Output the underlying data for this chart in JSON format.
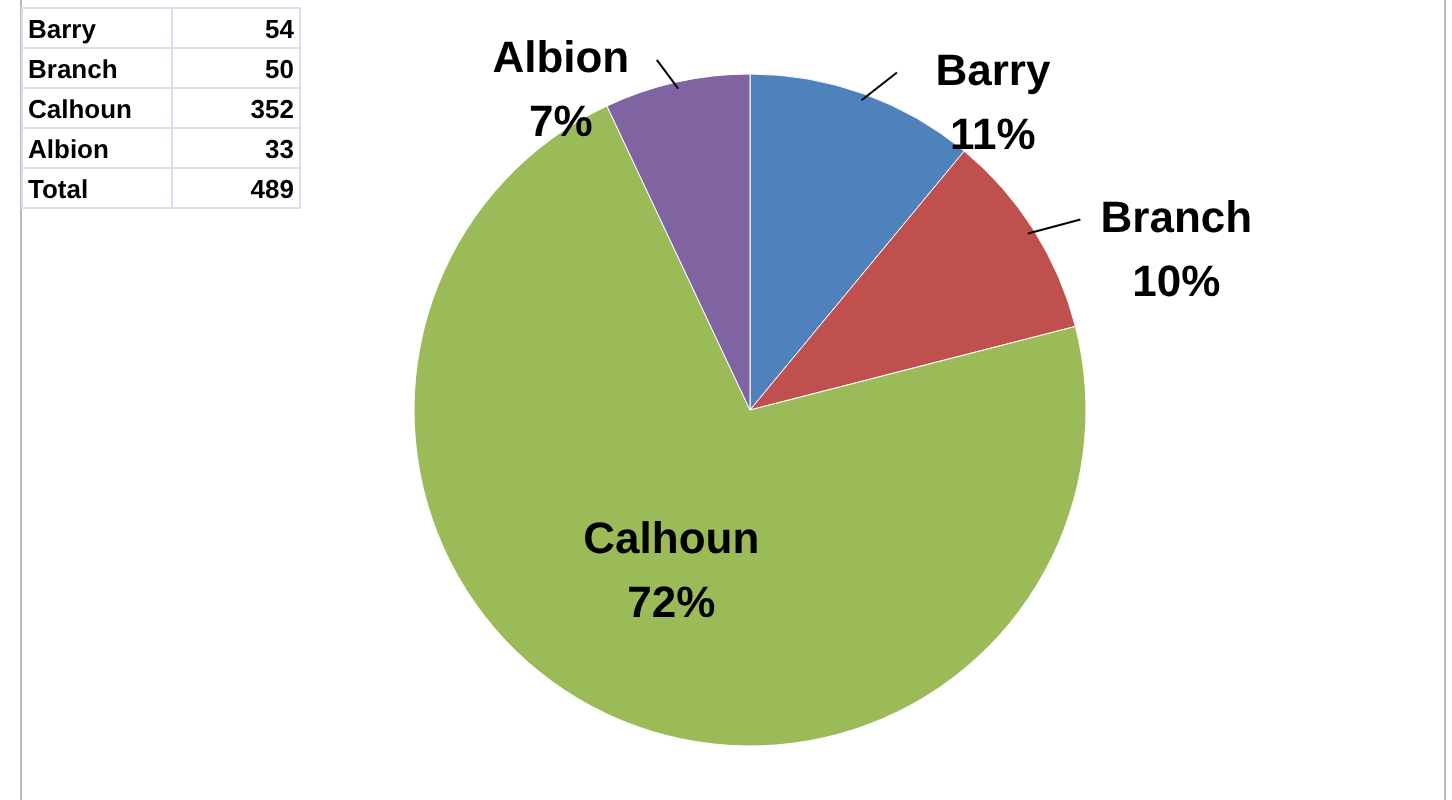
{
  "chart_data": {
    "type": "pie",
    "categories": [
      "Barry",
      "Branch",
      "Calhoun",
      "Albion"
    ],
    "values": [
      11,
      10,
      72,
      7
    ],
    "colors": [
      "#4f81bd",
      "#c0504d",
      "#9bbb59",
      "#8064a2"
    ],
    "value_labels": [
      "11%",
      "10%",
      "72%",
      "7%"
    ],
    "annotations": [
      "54",
      "50",
      "352",
      "33",
      "Total",
      "489"
    ]
  }
}
